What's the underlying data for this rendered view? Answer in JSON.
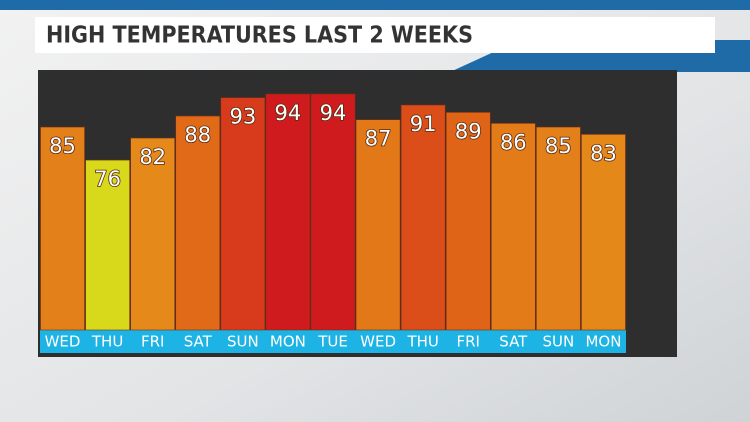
{
  "chart_data": {
    "type": "bar",
    "title": "HIGH TEMPERATURES LAST 2 WEEKS",
    "categories": [
      "WED",
      "THU",
      "FRI",
      "SAT",
      "SUN",
      "MON",
      "TUE",
      "WED",
      "THU",
      "FRI",
      "SAT",
      "SUN",
      "MON"
    ],
    "values": [
      85,
      76,
      82,
      88,
      93,
      94,
      94,
      87,
      91,
      89,
      86,
      85,
      83
    ],
    "colors": [
      "#e4801a",
      "#d9d91c",
      "#e58a1a",
      "#e06a18",
      "#d83a1c",
      "#cf1b1d",
      "#cf1b1d",
      "#e27818",
      "#db4e1a",
      "#df6418",
      "#e37b18",
      "#e4801a",
      "#e5881a"
    ],
    "label_color": "#1db3e4"
  }
}
